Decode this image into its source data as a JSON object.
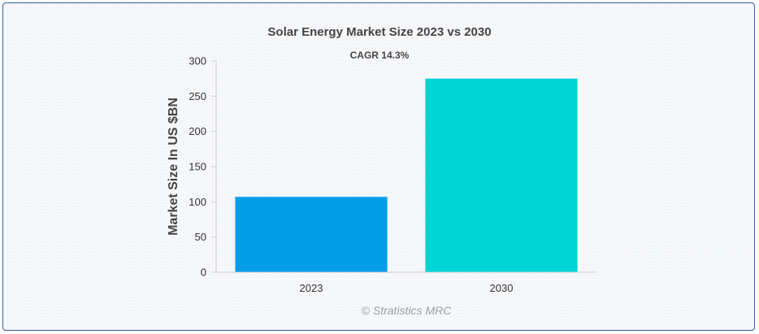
{
  "chart_data": {
    "type": "bar",
    "title": "Solar Energy Market Size 2023 vs 2030",
    "subtitle": "CAGR 14.3%",
    "xlabel": "",
    "ylabel": "Market Size In US $BN",
    "categories": [
      "2023",
      "2030"
    ],
    "values": [
      107,
      275
    ],
    "colors": [
      "#029ee9",
      "#00d4d4"
    ],
    "ylim": [
      0,
      300
    ],
    "yticks": [
      0,
      50,
      100,
      150,
      200,
      250,
      300
    ],
    "grid": false,
    "legend": "none"
  },
  "watermark": "© Stratistics MRC",
  "colors": {
    "border": "#2f5fa8",
    "axis": "#cccccc"
  }
}
